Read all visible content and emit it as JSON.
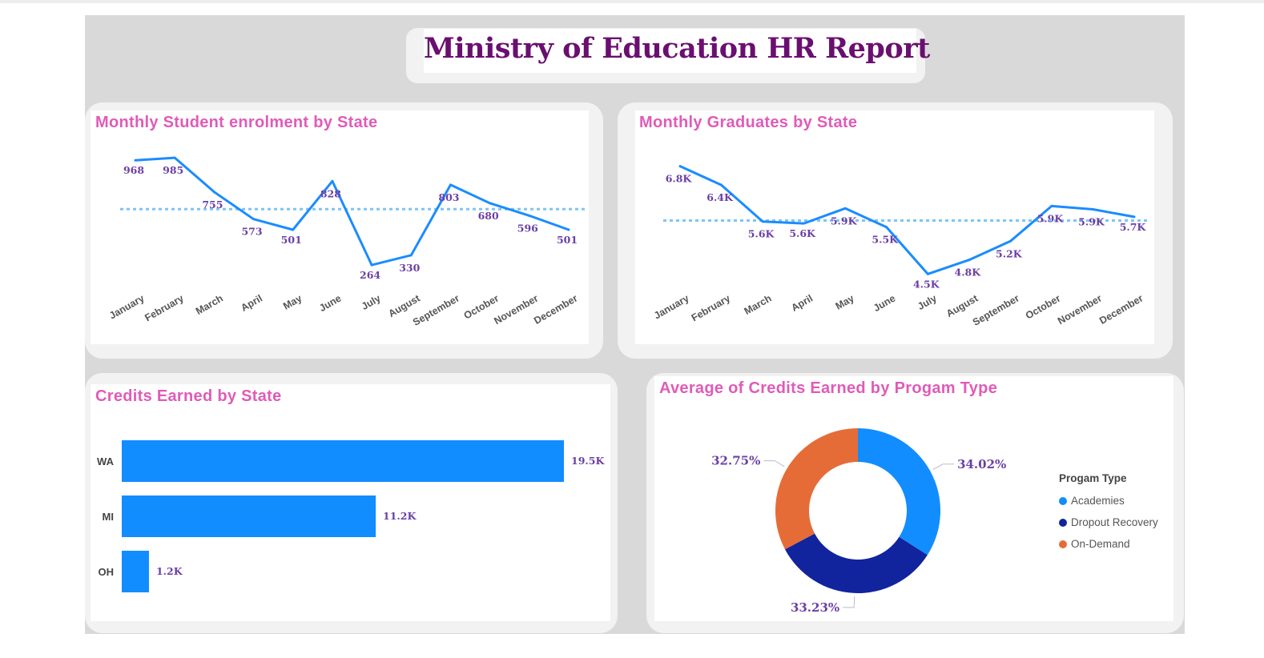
{
  "report": {
    "title": "Ministry of Education HR Report"
  },
  "colors": {
    "line": "#1a8cff",
    "avg_line": "#7fc4f5",
    "bar": "#118dff",
    "label": "#6b3fa6",
    "title_pink": "#e05bb8",
    "report_title": "#6a0f70"
  },
  "chart_data": [
    {
      "type": "line",
      "title": "Monthly Student enrolment by State",
      "categories": [
        "January",
        "February",
        "March",
        "April",
        "May",
        "June",
        "July",
        "August",
        "September",
        "October",
        "November",
        "December"
      ],
      "labels": [
        "968",
        "985",
        "755",
        "573",
        "501",
        "828",
        "264",
        "330",
        "803",
        "680",
        "596",
        "501"
      ],
      "series": [
        {
          "values": [
            968,
            985,
            755,
            573,
            501,
            828,
            264,
            330,
            803,
            680,
            596,
            501
          ]
        }
      ],
      "average_line": 640,
      "ylim": [
        200,
        1050
      ]
    },
    {
      "type": "line",
      "title": "Monthly Graduates by State",
      "categories": [
        "January",
        "February",
        "March",
        "April",
        "May",
        "June",
        "July",
        "August",
        "September",
        "October",
        "November",
        "December"
      ],
      "labels": [
        "6.8K",
        "6.4K",
        "5.6K",
        "5.6K",
        "5.9K",
        "5.5K",
        "4.5K",
        "4.8K",
        "5.2K",
        "5.9K",
        "5.9K",
        "5.7K"
      ],
      "series": [
        {
          "values": [
            6800,
            6400,
            5620,
            5580,
            5900,
            5500,
            4500,
            4800,
            5200,
            5950,
            5880,
            5720
          ]
        }
      ],
      "average_line": 5640,
      "ylim": [
        4300,
        7050
      ]
    },
    {
      "type": "bar",
      "orientation": "horizontal",
      "title": "Credits Earned by State",
      "categories": [
        "WA",
        "MI",
        "OH"
      ],
      "values": [
        19500,
        11200,
        1200
      ],
      "labels": [
        "19.5K",
        "11.2K",
        "1.2K"
      ],
      "xlim": [
        0,
        19500
      ]
    },
    {
      "type": "pie",
      "donut": true,
      "title": "Average of Credits Earned by Progam Type",
      "legend_title": "Progam Type",
      "legend_position": "right",
      "slices": [
        {
          "name": "Academies",
          "value": 34.02,
          "label": "34.02%",
          "color": "#118dff"
        },
        {
          "name": "Dropout Recovery",
          "value": 33.23,
          "label": "33.23%",
          "color": "#12239e"
        },
        {
          "name": "On-Demand",
          "value": 32.75,
          "label": "32.75%",
          "color": "#e66c37"
        }
      ]
    }
  ]
}
